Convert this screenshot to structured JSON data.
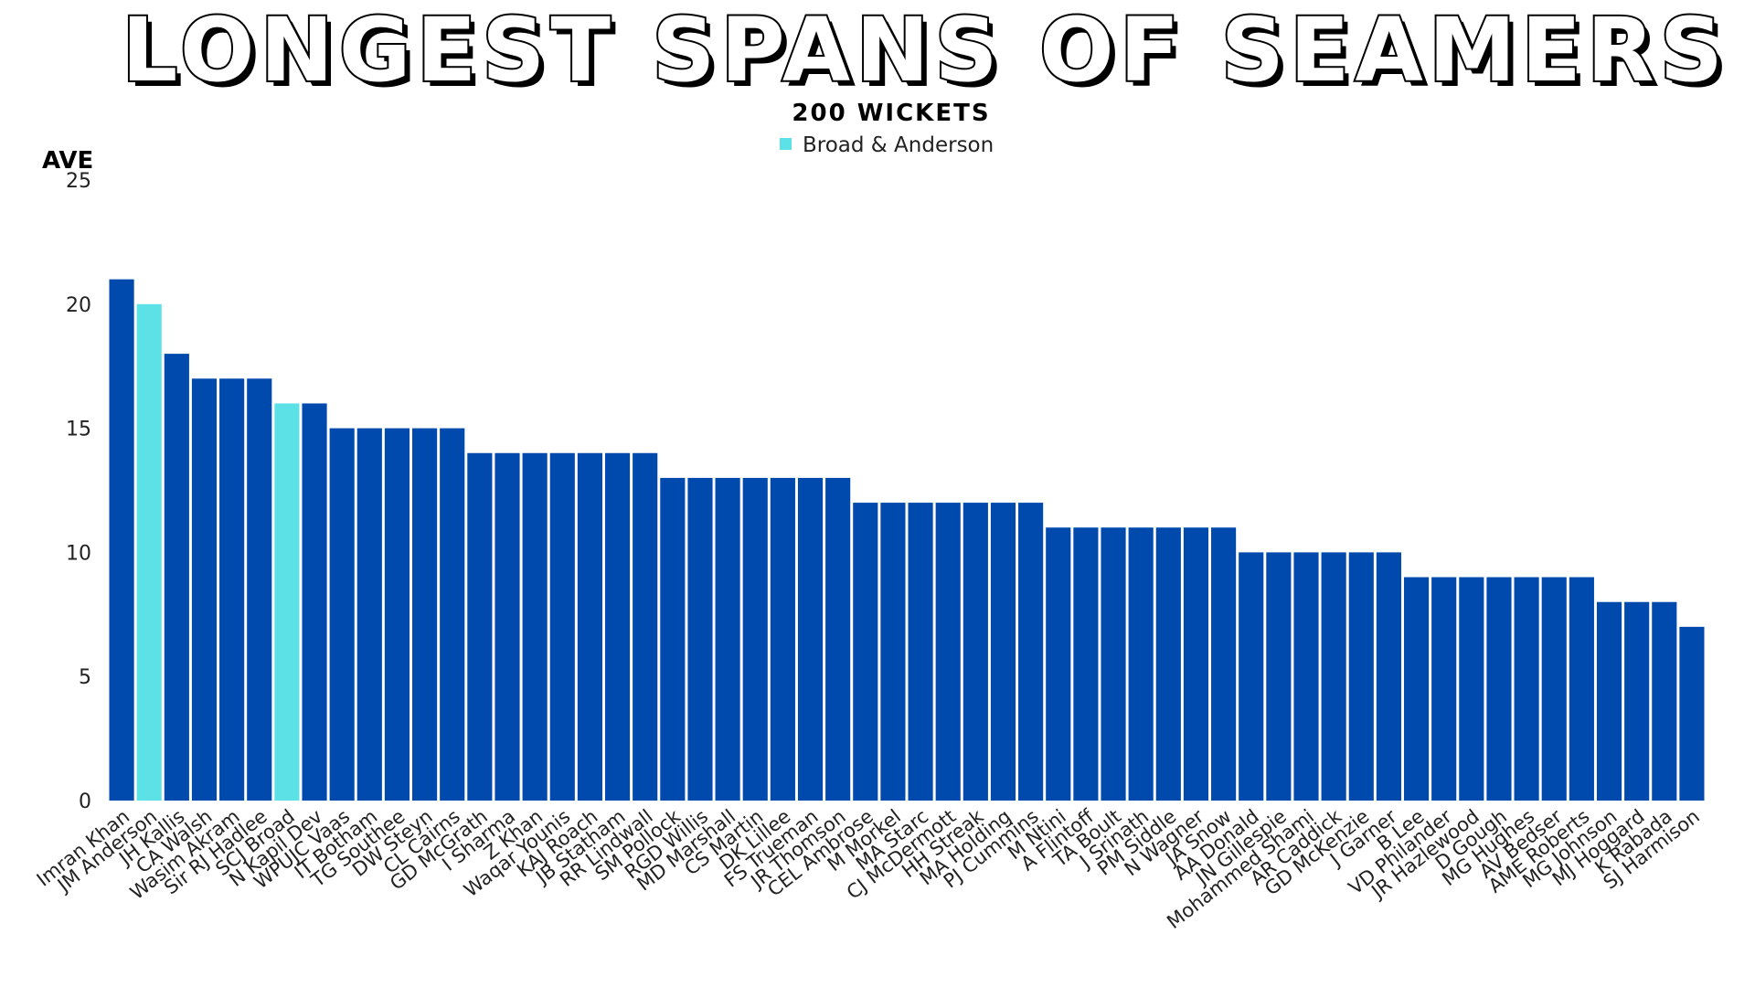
{
  "chart_data": {
    "type": "bar",
    "title": "LONGEST SPANS OF SEAMERS",
    "subtitle": "200 WICKETS",
    "ylabel": "AVE",
    "xlabel": "",
    "ylim": [
      0,
      25
    ],
    "yticks": [
      0,
      5,
      10,
      15,
      20,
      25
    ],
    "grid": false,
    "legend": {
      "position": "top-center",
      "label": "Broad & Anderson",
      "color": "#5ce1e6"
    },
    "colors": {
      "default": "#004aad",
      "highlight": "#5ce1e6"
    },
    "categories": [
      "Imran Khan",
      "JM Anderson",
      "JH Kallis",
      "CA Walsh",
      "Wasim Akram",
      "Sir RJ Hadlee",
      "SCJ Broad",
      "N Kapil Dev",
      "WPUJC Vaas",
      "IT Botham",
      "TG Southee",
      "DW Steyn",
      "CL Cairns",
      "GD McGrath",
      "I Sharma",
      "Z Khan",
      "Waqar Younis",
      "KAJ Roach",
      "JB Statham",
      "RR Lindwall",
      "SM Pollock",
      "RGD Willis",
      "MD Marshall",
      "CS Martin",
      "DK Lillee",
      "FS Trueman",
      "JR Thomson",
      "CEL Ambrose",
      "M Morkel",
      "MA Starc",
      "CJ McDermott",
      "HH Streak",
      "MA Holding",
      "PJ Cummins",
      "M Ntini",
      "A Flintoff",
      "TA Boult",
      "J Srinath",
      "PM Siddle",
      "N Wagner",
      "JA Snow",
      "AA Donald",
      "JN Gillespie",
      "Mohammed Shami",
      "AR Caddick",
      "GD McKenzie",
      "J Garner",
      "B Lee",
      "VD Philander",
      "JR Hazlewood",
      "D Gough",
      "MG Hughes",
      "AV Bedser",
      "AME Roberts",
      "MG Johnson",
      "MJ Hoggard",
      "K Rabada",
      "SJ Harmison"
    ],
    "values": [
      21,
      20,
      18,
      17,
      17,
      17,
      16,
      16,
      15,
      15,
      15,
      15,
      15,
      14,
      14,
      14,
      14,
      14,
      14,
      14,
      13,
      13,
      13,
      13,
      13,
      13,
      13,
      12,
      12,
      12,
      12,
      12,
      12,
      12,
      11,
      11,
      11,
      11,
      11,
      11,
      11,
      10,
      10,
      10,
      10,
      10,
      10,
      9,
      9,
      9,
      9,
      9,
      9,
      9,
      8,
      8,
      8,
      7
    ],
    "highlight": [
      "JM Anderson",
      "SCJ Broad"
    ]
  }
}
